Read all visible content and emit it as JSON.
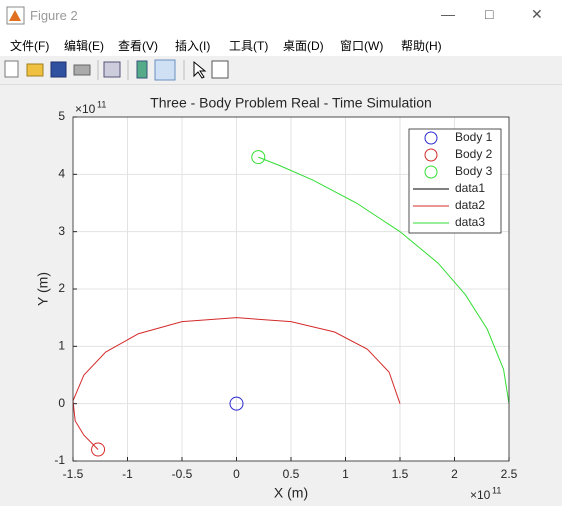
{
  "window": {
    "title": "Figure 2",
    "menu": [
      "文件(F)",
      "编辑(E)",
      "查看(V)",
      "插入(I)",
      "工具(T)",
      "桌面(D)",
      "窗口(W)",
      "帮助(H)"
    ]
  },
  "chart_data": {
    "type": "line",
    "title": "Three - Body Problem Real - Time Simulation",
    "x_label": "X (m)",
    "y_label": "Y (m)",
    "x_multiplier": {
      "base": "×10",
      "exponent": "11"
    },
    "y_multiplier": {
      "base": "×10",
      "exponent": "11"
    },
    "xlim": [
      -150000000000.0,
      250000000000.0
    ],
    "ylim": [
      -100000000000.0,
      500000000000.0
    ],
    "xticks": [
      {
        "value": -150000000000.0,
        "label": "-1.5"
      },
      {
        "value": -100000000000.0,
        "label": "-1"
      },
      {
        "value": -50000000000.0,
        "label": "-0.5"
      },
      {
        "value": 0,
        "label": "0"
      },
      {
        "value": 50000000000.0,
        "label": "0.5"
      },
      {
        "value": 100000000000.0,
        "label": "1"
      },
      {
        "value": 150000000000.0,
        "label": "1.5"
      },
      {
        "value": 200000000000.0,
        "label": "2"
      },
      {
        "value": 250000000000.0,
        "label": "2.5"
      }
    ],
    "yticks": [
      {
        "value": -100000000000.0,
        "label": "-1"
      },
      {
        "value": 0,
        "label": "0"
      },
      {
        "value": 100000000000.0,
        "label": "1"
      },
      {
        "value": 200000000000.0,
        "label": "2"
      },
      {
        "value": 300000000000.0,
        "label": "3"
      },
      {
        "value": 400000000000.0,
        "label": "4"
      },
      {
        "value": 500000000000.0,
        "label": "5"
      }
    ],
    "grid": true,
    "legend": "upper right",
    "series": [
      {
        "name": "Body 1",
        "color": "#2a2ad0",
        "marker": "circle",
        "x": [
          0
        ],
        "y": [
          0
        ]
      },
      {
        "name": "Body 2",
        "color": "#d42a2a",
        "marker": "circle",
        "x": [
          -127000000000.0
        ],
        "y": [
          -80000000000.0
        ]
      },
      {
        "name": "Body 3",
        "color": "#33dd33",
        "marker": "circle",
        "x": [
          20000000000.0
        ],
        "y": [
          430000000000.0
        ]
      },
      {
        "name": "data1",
        "color": "#000000",
        "x": [
          0,
          0
        ],
        "y": [
          0,
          0
        ]
      },
      {
        "name": "data2",
        "color": "#d42a2a",
        "x": [
          150000000000.0,
          140000000000.0,
          120000000000.0,
          90000000000.0,
          50000000000.0,
          0,
          -50000000000.0,
          -90000000000.0,
          -120000000000.0,
          -140000000000.0,
          -150000000000.0,
          -148000000000.0,
          -140000000000.0,
          -127000000000.0
        ],
        "y": [
          0,
          55000000000.0,
          95000000000.0,
          125000000000.0,
          143000000000.0,
          150000000000.0,
          143000000000.0,
          122000000000.0,
          90000000000.0,
          50000000000.0,
          5000000000.0,
          -30000000000.0,
          -55000000000.0,
          -80000000000.0
        ]
      },
      {
        "name": "data3",
        "color": "#33dd33",
        "x": [
          250000000000.0,
          245000000000.0,
          230000000000.0,
          210000000000.0,
          185000000000.0,
          150000000000.0,
          110000000000.0,
          70000000000.0,
          40000000000.0,
          20000000000.0
        ],
        "y": [
          0,
          60000000000.0,
          130000000000.0,
          190000000000.0,
          245000000000.0,
          300000000000.0,
          350000000000.0,
          390000000000.0,
          415000000000.0,
          430000000000.0
        ]
      }
    ]
  }
}
